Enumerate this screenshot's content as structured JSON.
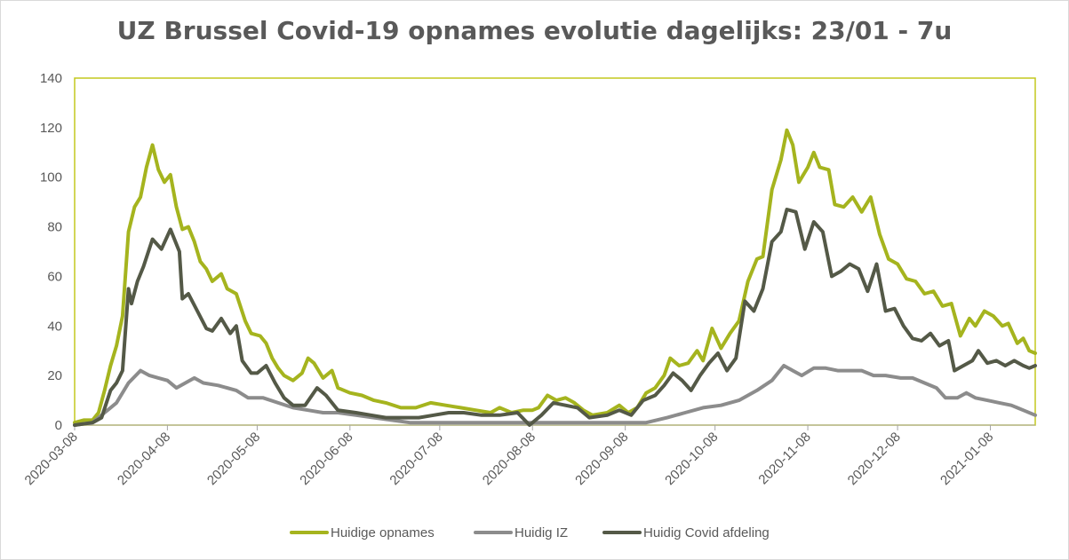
{
  "chart_data": {
    "type": "line",
    "title": "UZ Brussel Covid-19 opnames evolutie dagelijks: 23/01 - 7u",
    "xlabel": "",
    "ylabel": "",
    "ylim": [
      0,
      140
    ],
    "yticks": [
      "0",
      "20",
      "40",
      "60",
      "80",
      "100",
      "120",
      "140"
    ],
    "xticks": [
      "2020-03-08",
      "2020-04-08",
      "2020-05-08",
      "2020-06-08",
      "2020-07-08",
      "2020-08-08",
      "2020-09-08",
      "2020-10-08",
      "2020-11-08",
      "2020-12-08",
      "2021-01-08"
    ],
    "x_start": "2020-03-08",
    "x_end": "2021-01-23",
    "grid": false,
    "legend": "bottom",
    "series": [
      {
        "name": "Huidige opnames",
        "color": "#a5b41e",
        "points": [
          [
            "2020-03-08",
            1
          ],
          [
            "2020-03-11",
            2
          ],
          [
            "2020-03-14",
            2
          ],
          [
            "2020-03-16",
            5
          ],
          [
            "2020-03-18",
            14
          ],
          [
            "2020-03-20",
            24
          ],
          [
            "2020-03-22",
            32
          ],
          [
            "2020-03-24",
            44
          ],
          [
            "2020-03-26",
            78
          ],
          [
            "2020-03-28",
            88
          ],
          [
            "2020-03-30",
            92
          ],
          [
            "2020-04-01",
            104
          ],
          [
            "2020-04-03",
            113
          ],
          [
            "2020-04-05",
            103
          ],
          [
            "2020-04-07",
            98
          ],
          [
            "2020-04-09",
            101
          ],
          [
            "2020-04-11",
            88
          ],
          [
            "2020-04-13",
            79
          ],
          [
            "2020-04-15",
            80
          ],
          [
            "2020-04-17",
            74
          ],
          [
            "2020-04-19",
            66
          ],
          [
            "2020-04-21",
            63
          ],
          [
            "2020-04-23",
            58
          ],
          [
            "2020-04-26",
            61
          ],
          [
            "2020-04-28",
            55
          ],
          [
            "2020-05-01",
            53
          ],
          [
            "2020-05-04",
            42
          ],
          [
            "2020-05-06",
            37
          ],
          [
            "2020-05-09",
            36
          ],
          [
            "2020-05-11",
            33
          ],
          [
            "2020-05-13",
            27
          ],
          [
            "2020-05-15",
            23
          ],
          [
            "2020-05-17",
            20
          ],
          [
            "2020-05-20",
            18
          ],
          [
            "2020-05-23",
            21
          ],
          [
            "2020-05-25",
            27
          ],
          [
            "2020-05-27",
            25
          ],
          [
            "2020-05-30",
            19
          ],
          [
            "2020-06-02",
            22
          ],
          [
            "2020-06-04",
            15
          ],
          [
            "2020-06-08",
            13
          ],
          [
            "2020-06-12",
            12
          ],
          [
            "2020-06-16",
            10
          ],
          [
            "2020-06-20",
            9
          ],
          [
            "2020-06-25",
            7
          ],
          [
            "2020-06-30",
            7
          ],
          [
            "2020-07-05",
            9
          ],
          [
            "2020-07-10",
            8
          ],
          [
            "2020-07-15",
            7
          ],
          [
            "2020-07-20",
            6
          ],
          [
            "2020-07-25",
            5
          ],
          [
            "2020-07-28",
            7
          ],
          [
            "2020-08-01",
            5
          ],
          [
            "2020-08-05",
            6
          ],
          [
            "2020-08-08",
            6
          ],
          [
            "2020-08-10",
            7
          ],
          [
            "2020-08-13",
            12
          ],
          [
            "2020-08-16",
            10
          ],
          [
            "2020-08-19",
            11
          ],
          [
            "2020-08-22",
            9
          ],
          [
            "2020-08-25",
            6
          ],
          [
            "2020-08-28",
            4
          ],
          [
            "2020-09-02",
            5
          ],
          [
            "2020-09-06",
            8
          ],
          [
            "2020-09-09",
            5
          ],
          [
            "2020-09-12",
            7
          ],
          [
            "2020-09-15",
            13
          ],
          [
            "2020-09-18",
            15
          ],
          [
            "2020-09-21",
            20
          ],
          [
            "2020-09-23",
            27
          ],
          [
            "2020-09-26",
            24
          ],
          [
            "2020-09-29",
            25
          ],
          [
            "2020-10-02",
            30
          ],
          [
            "2020-10-04",
            26
          ],
          [
            "2020-10-07",
            39
          ],
          [
            "2020-10-10",
            31
          ],
          [
            "2020-10-13",
            37
          ],
          [
            "2020-10-16",
            42
          ],
          [
            "2020-10-19",
            58
          ],
          [
            "2020-10-22",
            67
          ],
          [
            "2020-10-24",
            68
          ],
          [
            "2020-10-27",
            95
          ],
          [
            "2020-10-30",
            107
          ],
          [
            "2020-11-01",
            119
          ],
          [
            "2020-11-03",
            113
          ],
          [
            "2020-11-05",
            98
          ],
          [
            "2020-11-08",
            104
          ],
          [
            "2020-11-10",
            110
          ],
          [
            "2020-11-12",
            104
          ],
          [
            "2020-11-15",
            103
          ],
          [
            "2020-11-17",
            89
          ],
          [
            "2020-11-20",
            88
          ],
          [
            "2020-11-23",
            92
          ],
          [
            "2020-11-26",
            86
          ],
          [
            "2020-11-29",
            92
          ],
          [
            "2020-12-02",
            77
          ],
          [
            "2020-12-05",
            67
          ],
          [
            "2020-12-08",
            65
          ],
          [
            "2020-12-11",
            59
          ],
          [
            "2020-12-14",
            58
          ],
          [
            "2020-12-17",
            53
          ],
          [
            "2020-12-20",
            54
          ],
          [
            "2020-12-23",
            48
          ],
          [
            "2020-12-26",
            49
          ],
          [
            "2020-12-29",
            36
          ],
          [
            "2021-01-01",
            43
          ],
          [
            "2021-01-03",
            40
          ],
          [
            "2021-01-06",
            46
          ],
          [
            "2021-01-09",
            44
          ],
          [
            "2021-01-12",
            40
          ],
          [
            "2021-01-14",
            41
          ],
          [
            "2021-01-17",
            33
          ],
          [
            "2021-01-19",
            35
          ],
          [
            "2021-01-21",
            30
          ],
          [
            "2021-01-23",
            29
          ]
        ]
      },
      {
        "name": "Huidig IZ",
        "color": "#8c8c8c",
        "points": [
          [
            "2020-03-08",
            0
          ],
          [
            "2020-03-14",
            1
          ],
          [
            "2020-03-18",
            5
          ],
          [
            "2020-03-22",
            9
          ],
          [
            "2020-03-26",
            17
          ],
          [
            "2020-03-30",
            22
          ],
          [
            "2020-04-02",
            20
          ],
          [
            "2020-04-05",
            19
          ],
          [
            "2020-04-08",
            18
          ],
          [
            "2020-04-11",
            15
          ],
          [
            "2020-04-14",
            17
          ],
          [
            "2020-04-17",
            19
          ],
          [
            "2020-04-20",
            17
          ],
          [
            "2020-04-25",
            16
          ],
          [
            "2020-05-01",
            14
          ],
          [
            "2020-05-05",
            11
          ],
          [
            "2020-05-10",
            11
          ],
          [
            "2020-05-15",
            9
          ],
          [
            "2020-05-20",
            7
          ],
          [
            "2020-05-25",
            6
          ],
          [
            "2020-05-30",
            5
          ],
          [
            "2020-06-04",
            5
          ],
          [
            "2020-06-10",
            4
          ],
          [
            "2020-06-16",
            3
          ],
          [
            "2020-06-22",
            2
          ],
          [
            "2020-06-28",
            1
          ],
          [
            "2020-07-05",
            1
          ],
          [
            "2020-07-15",
            1
          ],
          [
            "2020-07-25",
            1
          ],
          [
            "2020-08-05",
            1
          ],
          [
            "2020-08-15",
            1
          ],
          [
            "2020-08-25",
            1
          ],
          [
            "2020-09-05",
            1
          ],
          [
            "2020-09-15",
            1
          ],
          [
            "2020-09-22",
            3
          ],
          [
            "2020-09-28",
            5
          ],
          [
            "2020-10-04",
            7
          ],
          [
            "2020-10-10",
            8
          ],
          [
            "2020-10-16",
            10
          ],
          [
            "2020-10-22",
            14
          ],
          [
            "2020-10-27",
            18
          ],
          [
            "2020-10-31",
            24
          ],
          [
            "2020-11-03",
            22
          ],
          [
            "2020-11-06",
            20
          ],
          [
            "2020-11-10",
            23
          ],
          [
            "2020-11-14",
            23
          ],
          [
            "2020-11-18",
            22
          ],
          [
            "2020-11-22",
            22
          ],
          [
            "2020-11-26",
            22
          ],
          [
            "2020-11-30",
            20
          ],
          [
            "2020-12-04",
            20
          ],
          [
            "2020-12-09",
            19
          ],
          [
            "2020-12-13",
            19
          ],
          [
            "2020-12-17",
            17
          ],
          [
            "2020-12-21",
            15
          ],
          [
            "2020-12-24",
            11
          ],
          [
            "2020-12-28",
            11
          ],
          [
            "2020-12-31",
            13
          ],
          [
            "2021-01-03",
            11
          ],
          [
            "2021-01-07",
            10
          ],
          [
            "2021-01-11",
            9
          ],
          [
            "2021-01-15",
            8
          ],
          [
            "2021-01-19",
            6
          ],
          [
            "2021-01-23",
            4
          ]
        ]
      },
      {
        "name": "Huidig Covid afdeling",
        "color": "#545947",
        "points": [
          [
            "2020-03-08",
            0
          ],
          [
            "2020-03-14",
            1
          ],
          [
            "2020-03-17",
            3
          ],
          [
            "2020-03-20",
            14
          ],
          [
            "2020-03-22",
            17
          ],
          [
            "2020-03-24",
            22
          ],
          [
            "2020-03-26",
            55
          ],
          [
            "2020-03-27",
            49
          ],
          [
            "2020-03-29",
            58
          ],
          [
            "2020-03-31",
            64
          ],
          [
            "2020-04-03",
            75
          ],
          [
            "2020-04-06",
            71
          ],
          [
            "2020-04-09",
            79
          ],
          [
            "2020-04-12",
            70
          ],
          [
            "2020-04-13",
            51
          ],
          [
            "2020-04-15",
            53
          ],
          [
            "2020-04-18",
            46
          ],
          [
            "2020-04-21",
            39
          ],
          [
            "2020-04-23",
            38
          ],
          [
            "2020-04-26",
            43
          ],
          [
            "2020-04-29",
            37
          ],
          [
            "2020-05-01",
            40
          ],
          [
            "2020-05-03",
            26
          ],
          [
            "2020-05-06",
            21
          ],
          [
            "2020-05-08",
            21
          ],
          [
            "2020-05-11",
            24
          ],
          [
            "2020-05-14",
            17
          ],
          [
            "2020-05-17",
            11
          ],
          [
            "2020-05-20",
            8
          ],
          [
            "2020-05-24",
            8
          ],
          [
            "2020-05-28",
            15
          ],
          [
            "2020-05-31",
            12
          ],
          [
            "2020-06-04",
            6
          ],
          [
            "2020-06-10",
            5
          ],
          [
            "2020-06-15",
            4
          ],
          [
            "2020-06-20",
            3
          ],
          [
            "2020-06-25",
            3
          ],
          [
            "2020-07-01",
            3
          ],
          [
            "2020-07-06",
            4
          ],
          [
            "2020-07-11",
            5
          ],
          [
            "2020-07-16",
            5
          ],
          [
            "2020-07-22",
            4
          ],
          [
            "2020-07-28",
            4
          ],
          [
            "2020-08-03",
            5
          ],
          [
            "2020-08-07",
            0
          ],
          [
            "2020-08-11",
            4
          ],
          [
            "2020-08-15",
            9
          ],
          [
            "2020-08-19",
            8
          ],
          [
            "2020-08-23",
            7
          ],
          [
            "2020-08-27",
            3
          ],
          [
            "2020-09-02",
            4
          ],
          [
            "2020-09-06",
            6
          ],
          [
            "2020-09-10",
            4
          ],
          [
            "2020-09-14",
            10
          ],
          [
            "2020-09-18",
            12
          ],
          [
            "2020-09-21",
            16
          ],
          [
            "2020-09-24",
            21
          ],
          [
            "2020-09-27",
            18
          ],
          [
            "2020-09-30",
            14
          ],
          [
            "2020-10-03",
            20
          ],
          [
            "2020-10-06",
            25
          ],
          [
            "2020-10-09",
            29
          ],
          [
            "2020-10-12",
            22
          ],
          [
            "2020-10-15",
            27
          ],
          [
            "2020-10-18",
            50
          ],
          [
            "2020-10-21",
            46
          ],
          [
            "2020-10-24",
            55
          ],
          [
            "2020-10-27",
            74
          ],
          [
            "2020-10-30",
            78
          ],
          [
            "2020-11-01",
            87
          ],
          [
            "2020-11-04",
            86
          ],
          [
            "2020-11-07",
            71
          ],
          [
            "2020-11-10",
            82
          ],
          [
            "2020-11-13",
            78
          ],
          [
            "2020-11-16",
            60
          ],
          [
            "2020-11-19",
            62
          ],
          [
            "2020-11-22",
            65
          ],
          [
            "2020-11-25",
            63
          ],
          [
            "2020-11-28",
            54
          ],
          [
            "2020-12-01",
            65
          ],
          [
            "2020-12-04",
            46
          ],
          [
            "2020-12-07",
            47
          ],
          [
            "2020-12-10",
            40
          ],
          [
            "2020-12-13",
            35
          ],
          [
            "2020-12-16",
            34
          ],
          [
            "2020-12-19",
            37
          ],
          [
            "2020-12-22",
            32
          ],
          [
            "2020-12-25",
            34
          ],
          [
            "2020-12-27",
            22
          ],
          [
            "2020-12-30",
            24
          ],
          [
            "2021-01-02",
            26
          ],
          [
            "2021-01-04",
            30
          ],
          [
            "2021-01-07",
            25
          ],
          [
            "2021-01-10",
            26
          ],
          [
            "2021-01-13",
            24
          ],
          [
            "2021-01-16",
            26
          ],
          [
            "2021-01-19",
            24
          ],
          [
            "2021-01-21",
            23
          ],
          [
            "2021-01-23",
            24
          ]
        ]
      }
    ]
  }
}
